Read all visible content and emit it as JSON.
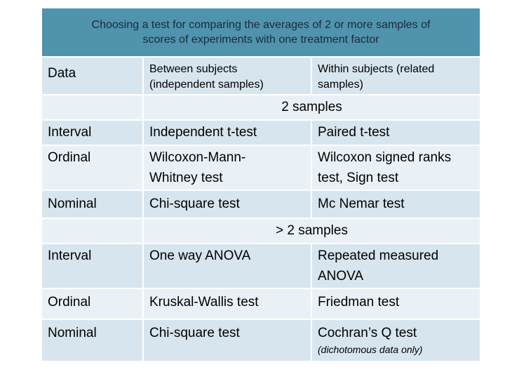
{
  "title": {
    "line1": "Choosing a test for comparing the averages of 2 or more samples of",
    "line2": "scores of experiments with one treatment factor"
  },
  "header": {
    "data": "Data",
    "between": "Between subjects (independent samples)",
    "within": "Within subjects (related samples)"
  },
  "section_two": {
    "label": "2 samples",
    "rows": [
      {
        "data": "Interval",
        "between": "Independent t-test",
        "within": "Paired t-test"
      },
      {
        "data": "Ordinal",
        "between": "Wilcoxon-Mann-Whitney test",
        "within": "Wilcoxon signed ranks test, Sign test"
      },
      {
        "data": "Nominal",
        "between": "Chi-square test",
        "within": "Mc Nemar test"
      }
    ]
  },
  "section_more": {
    "label": "> 2 samples",
    "rows": [
      {
        "data": "Interval",
        "between": "One way ANOVA",
        "within": "Repeated measured ANOVA"
      },
      {
        "data": "Ordinal",
        "between": "Kruskal-Wallis test",
        "within": "Friedman test"
      },
      {
        "data": "Nominal",
        "between": "Chi-square test",
        "within": "Cochran’s Q test",
        "note": "(dichotomous data only)"
      }
    ]
  }
}
